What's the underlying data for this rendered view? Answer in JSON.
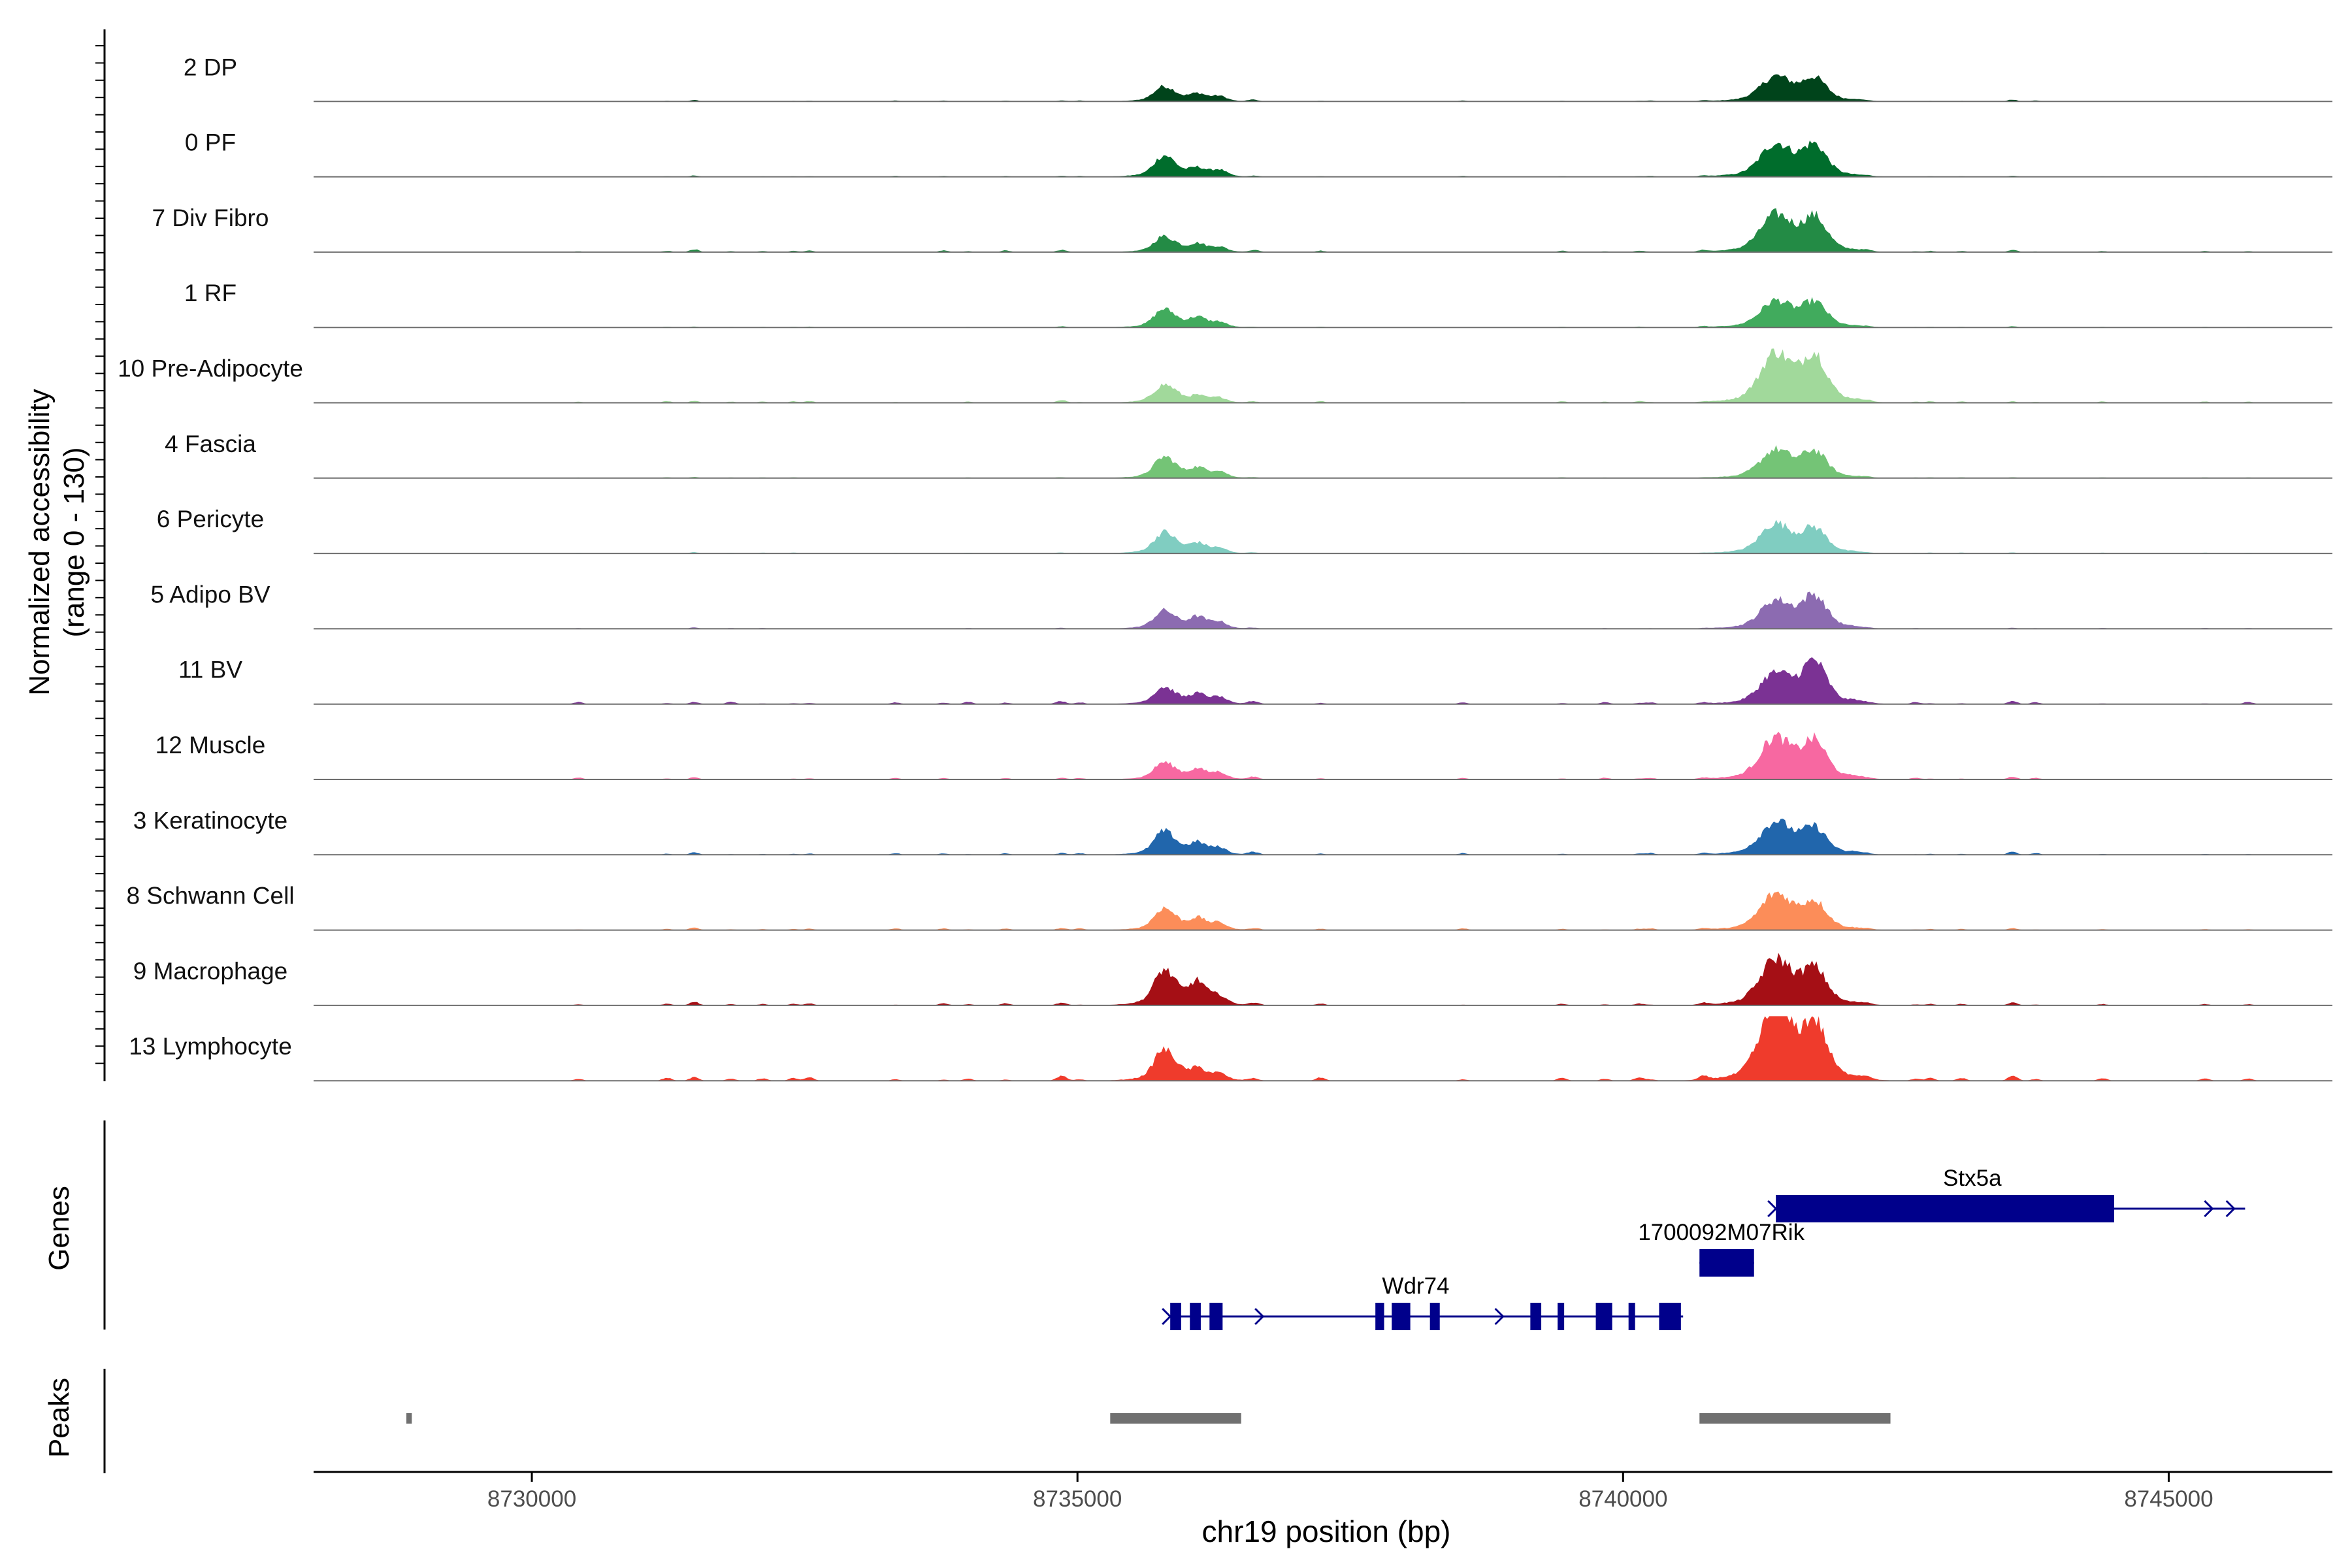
{
  "chart_data": {
    "type": "area",
    "region": "chr19",
    "x_axis": {
      "label": "chr19 position (bp)",
      "range": [
        8728000,
        8746500
      ],
      "ticks": [
        8730000,
        8735000,
        8740000,
        8745000
      ],
      "tick_labels": [
        "8730000",
        "8735000",
        "8740000",
        "8745000"
      ]
    },
    "coverage": {
      "ylabel_line1": "Normalized accessibility",
      "ylabel_line2": "(range 0 - 130)",
      "ylim": [
        0,
        130
      ],
      "peak_regions": [
        {
          "x": 8735800,
          "w": 130
        },
        {
          "x": 8736100,
          "w": 110
        },
        {
          "x": 8736300,
          "w": 90
        },
        {
          "x": 8741400,
          "w": 180
        },
        {
          "x": 8741750,
          "w": 150
        }
      ],
      "tracks": [
        {
          "label": "2 DP",
          "color": "#00441b",
          "peaks": [
            18,
            9,
            6,
            30,
            28
          ],
          "noise": 1.2
        },
        {
          "label": "0 PF",
          "color": "#006d2c",
          "peaks": [
            26,
            10,
            8,
            40,
            38
          ],
          "noise": 1.0
        },
        {
          "label": "7 Div Fibro",
          "color": "#238b45",
          "peaks": [
            18,
            10,
            6,
            45,
            42
          ],
          "noise": 2.0
        },
        {
          "label": "1 RF",
          "color": "#41ab5d",
          "peaks": [
            22,
            12,
            6,
            32,
            30
          ],
          "noise": 1.0
        },
        {
          "label": "10 Pre-Adipocyte",
          "color": "#a1d99b",
          "peaks": [
            22,
            8,
            6,
            60,
            58
          ],
          "noise": 2.0
        },
        {
          "label": "4 Fascia",
          "color": "#74c476",
          "peaks": [
            26,
            12,
            8,
            34,
            32
          ],
          "noise": 1.0
        },
        {
          "label": "6 Pericyte",
          "color": "#80cdc1",
          "peaks": [
            26,
            12,
            6,
            36,
            30
          ],
          "noise": 1.0
        },
        {
          "label": "5 Adipo BV",
          "color": "#8c6bb1",
          "peaks": [
            22,
            14,
            8,
            34,
            40
          ],
          "noise": 1.0
        },
        {
          "label": "11 BV",
          "color": "#7b3294",
          "peaks": [
            20,
            12,
            8,
            36,
            52
          ],
          "noise": 2.5
        },
        {
          "label": "12 Muscle",
          "color": "#f768a1",
          "peaks": [
            20,
            12,
            8,
            50,
            46
          ],
          "noise": 2.0
        },
        {
          "label": "3 Keratinocyte",
          "color": "#2166ac",
          "peaks": [
            28,
            14,
            8,
            40,
            32
          ],
          "noise": 2.0
        },
        {
          "label": "8 Schwann Cell",
          "color": "#fc8d59",
          "peaks": [
            26,
            14,
            8,
            44,
            34
          ],
          "noise": 2.0
        },
        {
          "label": "9 Macrophage",
          "color": "#a50f15",
          "peaks": [
            42,
            28,
            10,
            56,
            44
          ],
          "noise": 2.5
        },
        {
          "label": "13 Lymphocyte",
          "color": "#ef3b2c",
          "peaks": [
            36,
            14,
            8,
            90,
            70
          ],
          "noise": 4.0
        }
      ]
    },
    "genes": {
      "label": "Genes",
      "color": "#00008b",
      "items": [
        {
          "name": "Stx5a",
          "row": 0,
          "start": 8741400,
          "end": 8745700,
          "strand": "+",
          "exons": [
            [
              8741400,
              8744500
            ]
          ],
          "arrows": [
            8741400,
            8745400,
            8745600
          ]
        },
        {
          "name": "1700092M07Rik",
          "row": 1,
          "start": 8740700,
          "end": 8741200,
          "strand": "+",
          "exons": [
            [
              8740700,
              8741200
            ]
          ],
          "arrows": []
        },
        {
          "name": "Wdr74",
          "row": 2,
          "start": 8735850,
          "end": 8740550,
          "strand": "+",
          "exons": [
            [
              8735850,
              8735950
            ],
            [
              8736030,
              8736130
            ],
            [
              8736210,
              8736330
            ],
            [
              8737730,
              8737810
            ],
            [
              8737880,
              8738050
            ],
            [
              8738230,
              8738320
            ],
            [
              8739150,
              8739250
            ],
            [
              8739400,
              8739460
            ],
            [
              8739750,
              8739900
            ],
            [
              8740050,
              8740100
            ],
            [
              8740330,
              8740530
            ]
          ],
          "arrows": [
            8735850,
            8736700,
            8738900
          ]
        }
      ]
    },
    "peaks_track": {
      "label": "Peaks",
      "color": "#707070",
      "regions": [
        [
          8728850,
          8728900
        ],
        [
          8735300,
          8736500
        ],
        [
          8740700,
          8742450
        ]
      ]
    }
  }
}
